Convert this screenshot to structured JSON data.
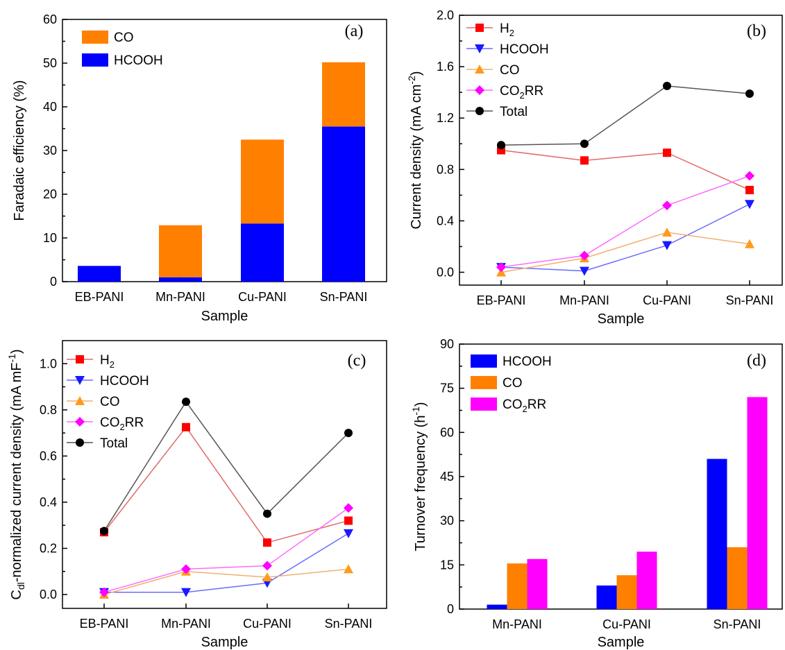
{
  "chart_data": [
    {
      "panel": "(a)",
      "type": "bar",
      "stacked": true,
      "categories": [
        "EB-PANI",
        "Mn-PANI",
        "Cu-PANI",
        "Sn-PANI"
      ],
      "series": [
        {
          "name": "HCOOH",
          "color": "#0000ff",
          "values": [
            3.6,
            1.0,
            13.3,
            35.5
          ]
        },
        {
          "name": "CO",
          "color": "#ff8000",
          "values": [
            0.0,
            11.9,
            19.2,
            14.7
          ]
        }
      ],
      "xlabel": "Sample",
      "ylabel": "Faradaic efficiency (%)",
      "ylim": [
        0,
        60
      ],
      "yticks": [
        0,
        10,
        20,
        30,
        40,
        50,
        60
      ],
      "legend": "top-left",
      "grid": false
    },
    {
      "panel": "(b)",
      "type": "line",
      "categories": [
        "EB-PANI",
        "Mn-PANI",
        "Cu-PANI",
        "Sn-PANI"
      ],
      "series": [
        {
          "name": "H2",
          "sub": "2",
          "base": "H",
          "after": "",
          "color": "#ff0000",
          "line_color": "#e06a6a",
          "marker": "square",
          "values": [
            0.95,
            0.87,
            0.93,
            0.64
          ]
        },
        {
          "name": "HCOOH",
          "base": "HCOOH",
          "sub": "",
          "after": "",
          "color": "#1a1aff",
          "line_color": "#6a6aff",
          "marker": "triangle-down",
          "values": [
            0.04,
            0.01,
            0.21,
            0.53
          ]
        },
        {
          "name": "CO",
          "base": "CO",
          "sub": "",
          "after": "",
          "color": "#ff9a1a",
          "line_color": "#f0b070",
          "marker": "triangle-up",
          "values": [
            0.0,
            0.11,
            0.31,
            0.22
          ]
        },
        {
          "name": "CO2RR",
          "base": "CO",
          "sub": "2",
          "after": "RR",
          "color": "#ff00ff",
          "line_color": "#ff6aff",
          "marker": "diamond",
          "values": [
            0.04,
            0.13,
            0.52,
            0.75
          ]
        },
        {
          "name": "Total",
          "base": "Total",
          "sub": "",
          "after": "",
          "color": "#000000",
          "line_color": "#555555",
          "marker": "circle",
          "values": [
            0.99,
            1.0,
            1.45,
            1.39
          ]
        }
      ],
      "xlabel": "Sample",
      "ylabel": {
        "main": "Current density (mA cm",
        "sup": "-2",
        "end": ")"
      },
      "ylim": [
        -0.1,
        2.0
      ],
      "yticks": [
        "0.0",
        "0.4",
        "0.8",
        "1.2",
        "1.6",
        "2.0"
      ],
      "legend": "top-left",
      "grid": false
    },
    {
      "panel": "(c)",
      "type": "line",
      "categories": [
        "EB-PANI",
        "Mn-PANI",
        "Cu-PANI",
        "Sn-PANI"
      ],
      "series": [
        {
          "name": "H2",
          "base": "H",
          "sub": "2",
          "after": "",
          "color": "#ff0000",
          "line_color": "#e06a6a",
          "marker": "square",
          "values": [
            0.27,
            0.725,
            0.225,
            0.32
          ]
        },
        {
          "name": "HCOOH",
          "base": "HCOOH",
          "sub": "",
          "after": "",
          "color": "#1a1aff",
          "line_color": "#6a6aff",
          "marker": "triangle-down",
          "values": [
            0.01,
            0.01,
            0.05,
            0.265
          ]
        },
        {
          "name": "CO",
          "base": "CO",
          "sub": "",
          "after": "",
          "color": "#ff9a1a",
          "line_color": "#f0b070",
          "marker": "triangle-up",
          "values": [
            0.0,
            0.1,
            0.075,
            0.11
          ]
        },
        {
          "name": "CO2RR",
          "base": "CO",
          "sub": "2",
          "after": "RR",
          "color": "#ff00ff",
          "line_color": "#ff6aff",
          "marker": "diamond",
          "values": [
            0.01,
            0.11,
            0.125,
            0.375
          ]
        },
        {
          "name": "Total",
          "base": "Total",
          "sub": "",
          "after": "",
          "color": "#000000",
          "line_color": "#555555",
          "marker": "circle",
          "values": [
            0.275,
            0.835,
            0.35,
            0.7
          ]
        }
      ],
      "xlabel": "Sample",
      "ylabel": {
        "pre": "C",
        "sub": "dl",
        "main": "-normalized current density (mA mF",
        "sup": "-1",
        "end": ")"
      },
      "ylim": [
        -0.06,
        1.1
      ],
      "yticks": [
        "0.0",
        "0.2",
        "0.4",
        "0.6",
        "0.8",
        "1.0"
      ],
      "legend": "top-left",
      "grid": false
    },
    {
      "panel": "(d)",
      "type": "bar",
      "grouped": true,
      "categories": [
        "Mn-PANI",
        "Cu-PANI",
        "Sn-PANI"
      ],
      "series": [
        {
          "name": "HCOOH",
          "base": "HCOOH",
          "sub": "",
          "after": "",
          "color": "#0000ff",
          "values": [
            1.5,
            8.0,
            51.0
          ]
        },
        {
          "name": "CO",
          "base": "CO",
          "sub": "",
          "after": "",
          "color": "#ff8000",
          "values": [
            15.5,
            11.5,
            21.0
          ]
        },
        {
          "name": "CO2RR",
          "base": "CO",
          "sub": "2",
          "after": "RR",
          "color": "#ff00ff",
          "values": [
            17.0,
            19.5,
            72.0
          ]
        }
      ],
      "xlabel": "Sample",
      "ylabel": {
        "main": "Turnover frequency (h",
        "sup": "-1",
        "end": ")"
      },
      "ylim": [
        0,
        90
      ],
      "yticks": [
        0,
        15,
        30,
        45,
        60,
        75,
        90
      ],
      "legend": "top-left",
      "grid": false
    }
  ]
}
